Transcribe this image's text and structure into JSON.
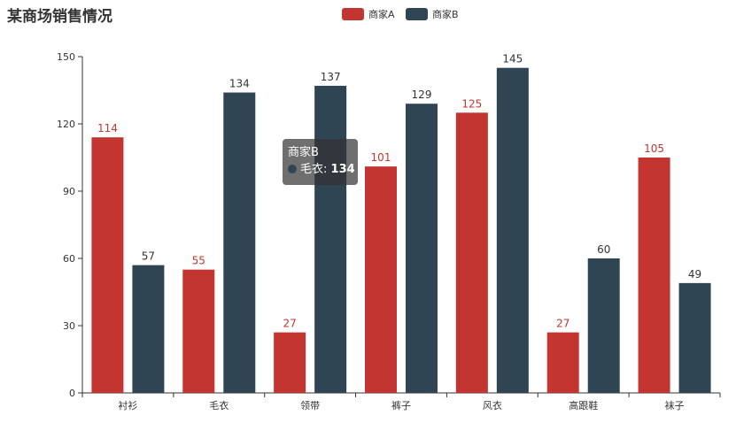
{
  "chart_data": {
    "type": "bar",
    "title": "某商场销售情况",
    "categories": [
      "衬衫",
      "毛衣",
      "领带",
      "裤子",
      "风衣",
      "高跟鞋",
      "袜子"
    ],
    "series": [
      {
        "name": "商家A",
        "color": "#c23531",
        "values": [
          114,
          55,
          27,
          101,
          125,
          27,
          105
        ]
      },
      {
        "name": "商家B",
        "color": "#2f4554",
        "values": [
          57,
          134,
          137,
          129,
          145,
          60,
          49
        ]
      }
    ],
    "yticks": [
      0,
      30,
      60,
      90,
      120,
      150
    ],
    "ylim": [
      0,
      150
    ],
    "legend_position": "top-center",
    "grid": false
  },
  "tooltip": {
    "series_name": "商家B",
    "category": "毛衣",
    "value": "134",
    "color": "#2f4554",
    "separator": ": "
  }
}
